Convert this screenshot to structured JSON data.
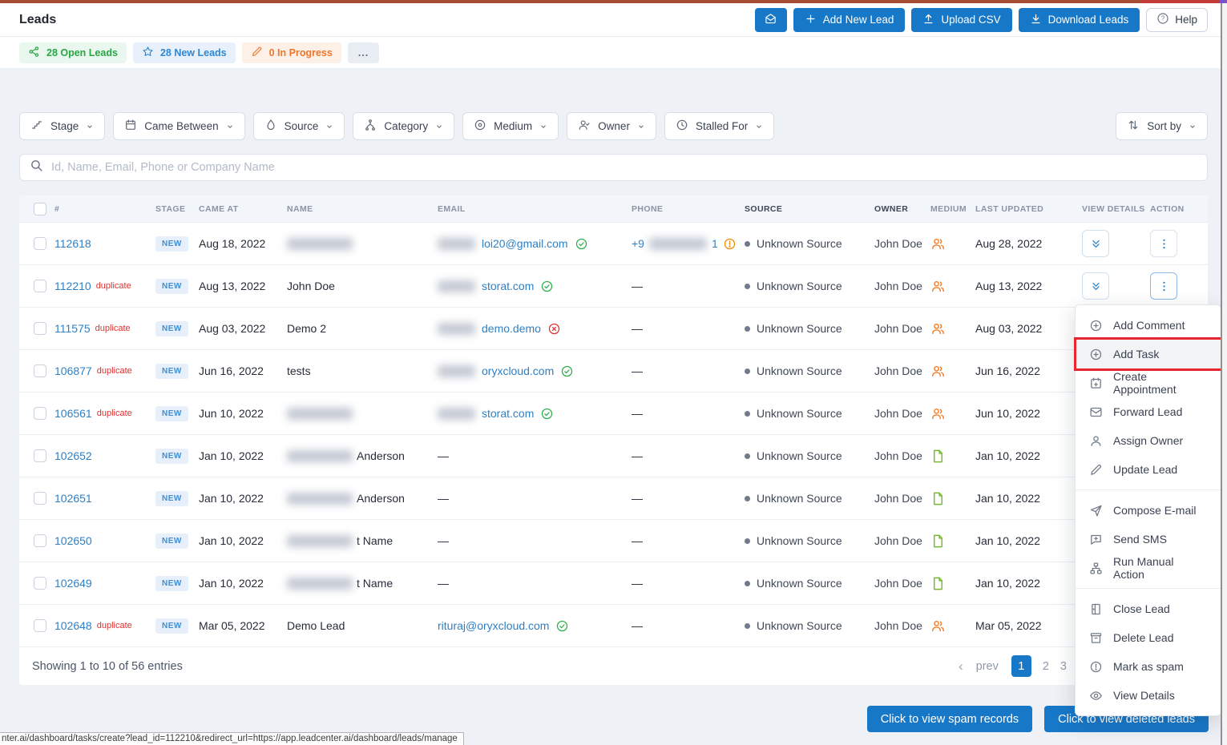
{
  "header": {
    "title": "Leads",
    "add_new_lead": "Add New Lead",
    "upload_csv": "Upload CSV",
    "download_leads": "Download Leads",
    "help": "Help"
  },
  "stats": {
    "open_leads": "28 Open Leads",
    "new_leads": "28 New Leads",
    "in_progress": "0 In Progress",
    "more": "..."
  },
  "filters": {
    "stage": "Stage",
    "came_between": "Came Between",
    "source": "Source",
    "category": "Category",
    "medium": "Medium",
    "owner": "Owner",
    "stalled_for": "Stalled For",
    "sort_by": "Sort by"
  },
  "search": {
    "placeholder": "Id, Name, Email, Phone or Company Name"
  },
  "table": {
    "columns": [
      "#",
      "STAGE",
      "CAME AT",
      "NAME",
      "EMAIL",
      "PHONE",
      "SOURCE",
      "OWNER",
      "MEDIUM",
      "LAST UPDATED",
      "VIEW DETAILS",
      "ACTION"
    ],
    "rows": [
      {
        "id": "112618",
        "duplicate": "",
        "stage": "NEW",
        "came_at": "Aug 18, 2022",
        "name": "",
        "name_blurred": true,
        "email": "loi20@gmail.com",
        "email_blurred": true,
        "email_status": "valid",
        "phone_type": "blurred",
        "phone_prefix": "+9",
        "phone_suffix": "1",
        "phone_status": "warning",
        "source": "Unknown Source",
        "owner": "John Doe",
        "medium": "contact",
        "last_updated": "Aug 28, 2022",
        "action_active": false
      },
      {
        "id": "112210",
        "duplicate": "duplicate",
        "stage": "NEW",
        "came_at": "Aug 13, 2022",
        "name": "John Doe",
        "name_blurred": false,
        "email": "storat.com",
        "email_blurred": true,
        "email_status": "valid",
        "phone_type": "none",
        "source": "Unknown Source",
        "owner": "John Doe",
        "medium": "contact",
        "last_updated": "Aug 13, 2022",
        "action_active": true
      },
      {
        "id": "111575",
        "duplicate": "duplicate",
        "stage": "NEW",
        "came_at": "Aug 03, 2022",
        "name": "Demo 2",
        "name_blurred": false,
        "email": "demo.demo",
        "email_blurred": true,
        "email_status": "invalid",
        "phone_type": "none",
        "source": "Unknown Source",
        "owner": "John Doe",
        "medium": "contact",
        "last_updated": "Aug 03, 2022",
        "action_active": false
      },
      {
        "id": "106877",
        "duplicate": "duplicate",
        "stage": "NEW",
        "came_at": "Jun 16, 2022",
        "name": "tests",
        "name_blurred": false,
        "email": "oryxcloud.com",
        "email_blurred": true,
        "email_status": "valid",
        "phone_type": "none",
        "source": "Unknown Source",
        "owner": "John Doe",
        "medium": "contact",
        "last_updated": "Jun 16, 2022",
        "action_active": false
      },
      {
        "id": "106561",
        "duplicate": "duplicate",
        "stage": "NEW",
        "came_at": "Jun 10, 2022",
        "name": "",
        "name_blurred": true,
        "email": "storat.com",
        "email_blurred": true,
        "email_status": "valid",
        "phone_type": "none",
        "source": "Unknown Source",
        "owner": "John Doe",
        "medium": "contact",
        "last_updated": "Jun 10, 2022",
        "action_active": false
      },
      {
        "id": "102652",
        "duplicate": "",
        "stage": "NEW",
        "came_at": "Jan 10, 2022",
        "name": "Anderson",
        "name_blurred": true,
        "email": "",
        "email_blurred": false,
        "email_status": "none",
        "phone_type": "none",
        "source": "Unknown Source",
        "owner": "John Doe",
        "medium": "form",
        "last_updated": "Jan 10, 2022",
        "action_active": false
      },
      {
        "id": "102651",
        "duplicate": "",
        "stage": "NEW",
        "came_at": "Jan 10, 2022",
        "name": "Anderson",
        "name_blurred": true,
        "email": "",
        "email_blurred": false,
        "email_status": "none",
        "phone_type": "none",
        "source": "Unknown Source",
        "owner": "John Doe",
        "medium": "form",
        "last_updated": "Jan 10, 2022",
        "action_active": false
      },
      {
        "id": "102650",
        "duplicate": "",
        "stage": "NEW",
        "came_at": "Jan 10, 2022",
        "name": "t Name",
        "name_blurred": true,
        "email": "",
        "email_blurred": false,
        "email_status": "none",
        "phone_type": "none",
        "source": "Unknown Source",
        "owner": "John Doe",
        "medium": "form",
        "last_updated": "Jan 10, 2022",
        "action_active": false
      },
      {
        "id": "102649",
        "duplicate": "",
        "stage": "NEW",
        "came_at": "Jan 10, 2022",
        "name": "t Name",
        "name_blurred": true,
        "email": "",
        "email_blurred": false,
        "email_status": "none",
        "phone_type": "none",
        "source": "Unknown Source",
        "owner": "John Doe",
        "medium": "form",
        "last_updated": "Jan 10, 2022",
        "action_active": false
      },
      {
        "id": "102648",
        "duplicate": "duplicate",
        "stage": "NEW",
        "came_at": "Mar 05, 2022",
        "name": "Demo Lead",
        "name_blurred": false,
        "email": "rituraj@oryxcloud.com",
        "email_blurred": false,
        "email_status": "valid",
        "phone_type": "none",
        "source": "Unknown Source",
        "owner": "John Doe",
        "medium": "contact",
        "last_updated": "Mar 05, 2022",
        "action_active": false
      }
    ]
  },
  "footer": {
    "summary": "Showing 1 to 10 of 56 entries",
    "pagination": {
      "prev_arrow": "‹",
      "prev": "prev",
      "pages": [
        "1",
        "2",
        "3"
      ],
      "active": "1"
    }
  },
  "context_menu": {
    "groups": [
      [
        {
          "label": "Add Comment",
          "icon": "plus-circle",
          "highlighted": false
        },
        {
          "label": "Add Task",
          "icon": "plus-circle",
          "highlighted": true
        },
        {
          "label": "Create Appointment",
          "icon": "calendar-plus",
          "highlighted": false
        },
        {
          "label": "Forward Lead",
          "icon": "envelope",
          "highlighted": false
        },
        {
          "label": "Assign Owner",
          "icon": "person",
          "highlighted": false
        },
        {
          "label": "Update Lead",
          "icon": "pencil-square",
          "highlighted": false
        }
      ],
      [
        {
          "label": "Compose E-mail",
          "icon": "paper-plane",
          "highlighted": false
        },
        {
          "label": "Send SMS",
          "icon": "chat-plus",
          "highlighted": false
        },
        {
          "label": "Run Manual Action",
          "icon": "flow",
          "highlighted": false
        }
      ],
      [
        {
          "label": "Close Lead",
          "icon": "door",
          "highlighted": false
        },
        {
          "label": "Delete Lead",
          "icon": "archive",
          "highlighted": false
        },
        {
          "label": "Mark as spam",
          "icon": "exclamation-circle",
          "highlighted": false
        },
        {
          "label": "View Details",
          "icon": "eye",
          "highlighted": false
        }
      ]
    ]
  },
  "bottom_buttons": {
    "spam": "Click to view spam records",
    "deleted": "Click to view deleted leads"
  },
  "status_bar": {
    "url": "nter.ai/dashboard/tasks/create?lead_id=112210&redirect_url=https://app.leadcenter.ai/dashboard/leads/manage"
  },
  "colors": {
    "primary": "#1878c8",
    "link": "#2f7fc4",
    "duplicate": "#e03131",
    "valid": "#2eae4e",
    "invalid": "#e03131",
    "warning": "#f08c00",
    "medium_contact": "#f07b28",
    "medium_form": "#74b92e",
    "highlight_box": "#e8262d"
  }
}
